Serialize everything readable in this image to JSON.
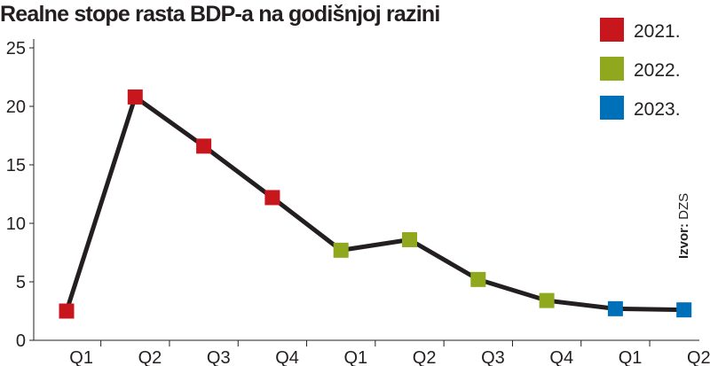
{
  "title": "Realne stope rasta BDP-a na godišnjoj razini",
  "source": {
    "label": "Izvor:",
    "value": "DZS"
  },
  "colors": {
    "2021.": "#c8161d",
    "2022.": "#8fa81e",
    "2023.": "#0071b9",
    "line": "#231f20"
  },
  "chart_data": {
    "type": "line",
    "title": "Realne stope rasta BDP-a na godišnjoj razini",
    "categories": [
      "Q1",
      "Q2",
      "Q3",
      "Q4",
      "Q1",
      "Q2",
      "Q3",
      "Q4",
      "Q1",
      "Q2"
    ],
    "values": [
      2.5,
      20.8,
      16.6,
      12.2,
      7.7,
      8.6,
      5.2,
      3.4,
      2.7,
      2.6
    ],
    "point_years": [
      "2021.",
      "2021.",
      "2021.",
      "2021.",
      "2022.",
      "2022.",
      "2022.",
      "2022.",
      "2023.",
      "2023."
    ],
    "legend": [
      "2021.",
      "2022.",
      "2023."
    ],
    "legend_position": "top-right",
    "y_ticks": [
      0,
      5,
      10,
      15,
      20,
      25
    ],
    "ylim": [
      0,
      25
    ],
    "xlabel": "",
    "ylabel": "",
    "grid": false
  }
}
